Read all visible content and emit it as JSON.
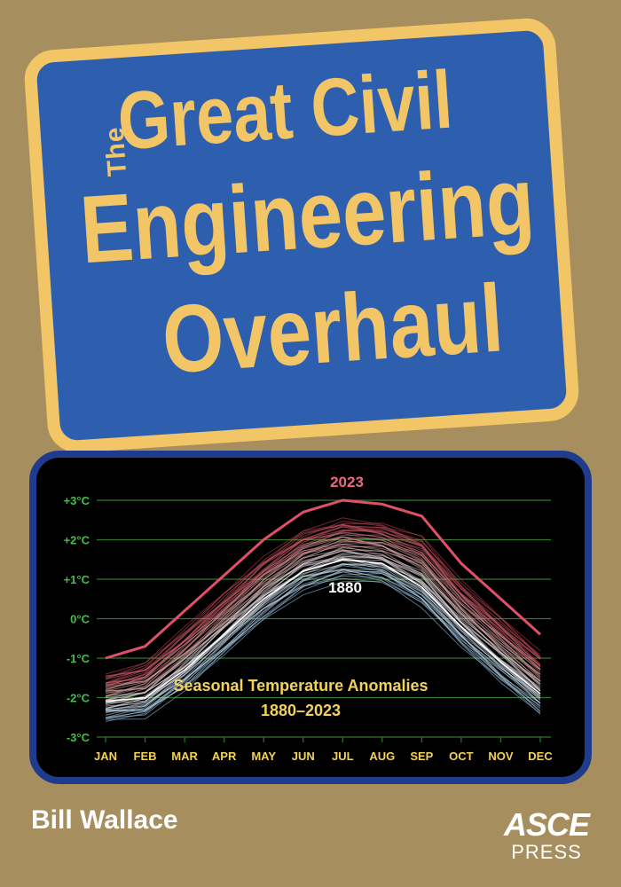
{
  "cover": {
    "title_prefix": "The",
    "title_lines": [
      "Great Civil",
      "Engineering",
      "Overhaul"
    ],
    "author": "Bill Wallace",
    "publisher_name": "ASCE",
    "publisher_sub": "PRESS",
    "colors": {
      "background": "#a78e5e",
      "title_panel": "#2e5fae",
      "title_text": "#f2c566",
      "chart_frame": "#1f3c8c"
    }
  },
  "chart_data": {
    "type": "line",
    "title": "Seasonal Temperature Anomalies",
    "subtitle": "1880–2023",
    "categories": [
      "JAN",
      "FEB",
      "MAR",
      "APR",
      "MAY",
      "JUN",
      "JUL",
      "AUG",
      "SEP",
      "OCT",
      "NOV",
      "DEC"
    ],
    "y_ticks": [
      "+3°C",
      "+2°C",
      "+1°C",
      "0°C",
      "-1°C",
      "-2°C",
      "-3°C"
    ],
    "ylim": [
      -3,
      3
    ],
    "grid": true,
    "annotations": [
      "2023",
      "1880"
    ],
    "series": [
      {
        "name": "2023",
        "color": "#e0506a",
        "values": [
          -1.0,
          -0.7,
          0.2,
          1.1,
          2.0,
          2.7,
          3.0,
          2.9,
          2.6,
          1.4,
          0.5,
          -0.4
        ]
      },
      {
        "name": "1880",
        "color": "#ffffff",
        "values": [
          -2.1,
          -2.0,
          -1.3,
          -0.4,
          0.5,
          1.2,
          1.5,
          1.4,
          0.8,
          -0.2,
          -1.1,
          -1.9
        ]
      }
    ]
  }
}
